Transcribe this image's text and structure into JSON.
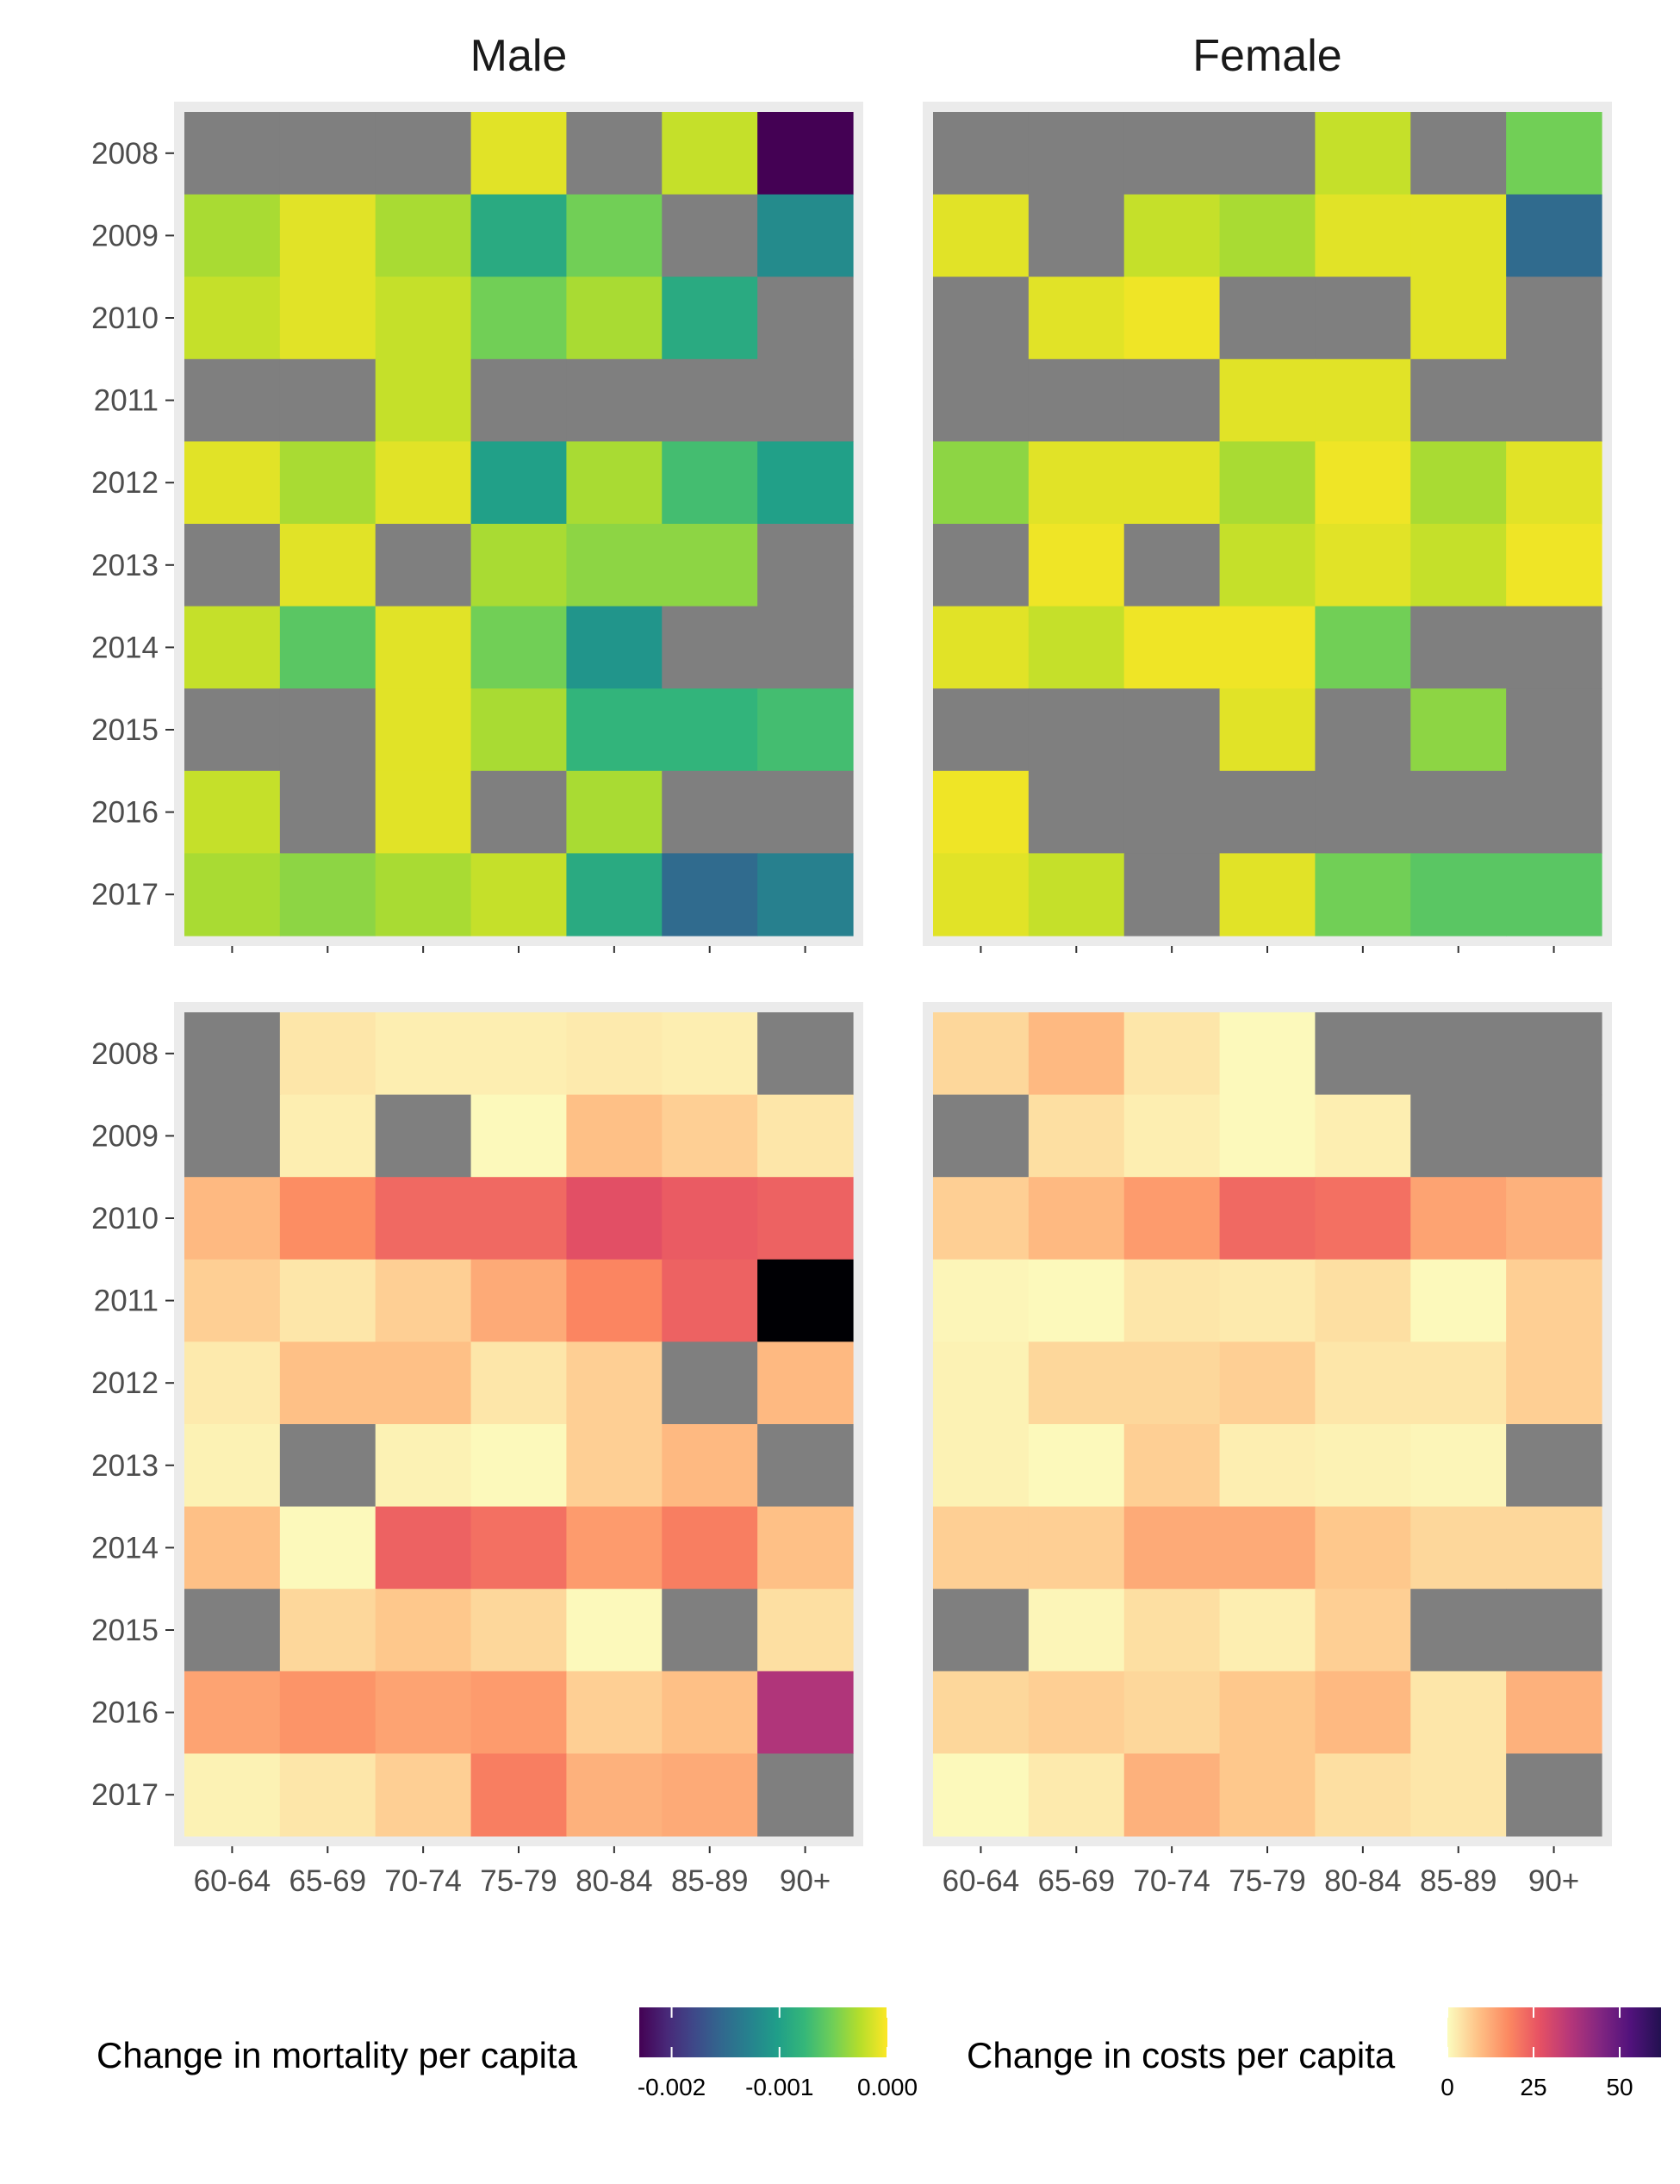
{
  "chart_data": {
    "type": "heatmap",
    "facets": [
      {
        "label": "Male"
      },
      {
        "label": "Female"
      }
    ],
    "x_categories": [
      "60-64",
      "65-69",
      "70-74",
      "75-79",
      "80-84",
      "85-89",
      "90+"
    ],
    "y_categories": [
      "2008",
      "2009",
      "2010",
      "2011",
      "2012",
      "2013",
      "2014",
      "2015",
      "2016",
      "2017"
    ],
    "mortality": {
      "legend_title": "Change in mortality per capita",
      "scale": "viridis",
      "range": [
        -0.0023,
        0.0
      ],
      "ticks": [
        {
          "value": -0.002,
          "label": "-0.002"
        },
        {
          "value": -0.001,
          "label": "-0.001"
        },
        {
          "value": 0.0,
          "label": "0.000"
        }
      ],
      "male": [
        [
          null,
          null,
          null,
          -0.0001,
          null,
          -0.0002,
          -0.0023
        ],
        [
          -0.0003,
          -0.0001,
          -0.0003,
          -0.0009,
          -0.0005,
          null,
          -0.0012
        ],
        [
          -0.0002,
          -0.0001,
          -0.0002,
          -0.0005,
          -0.0003,
          -0.0009,
          null
        ],
        [
          null,
          null,
          -0.0002,
          null,
          null,
          null,
          null
        ],
        [
          -0.0001,
          -0.0003,
          -0.0001,
          -0.001,
          -0.0003,
          -0.0007,
          -0.001
        ],
        [
          null,
          -0.0001,
          null,
          -0.0003,
          -0.0004,
          -0.0004,
          null
        ],
        [
          -0.0002,
          -0.0006,
          -0.0001,
          -0.0005,
          -0.0011,
          null,
          null
        ],
        [
          null,
          null,
          -0.0001,
          -0.0003,
          -0.0008,
          -0.0008,
          -0.0007
        ],
        [
          -0.0002,
          null,
          -0.0001,
          null,
          -0.0003,
          null,
          null
        ],
        [
          -0.0003,
          -0.0004,
          -0.0003,
          -0.0002,
          -0.0009,
          -0.0015,
          -0.0013
        ]
      ],
      "female": [
        [
          null,
          null,
          null,
          null,
          -0.0002,
          null,
          -0.0005
        ],
        [
          -0.0001,
          null,
          -0.0002,
          -0.0003,
          -0.0001,
          -0.0001,
          -0.0015
        ],
        [
          null,
          -0.0001,
          -5e-05,
          null,
          null,
          -0.0001,
          null
        ],
        [
          null,
          null,
          null,
          -0.0001,
          -0.0001,
          null,
          null
        ],
        [
          -0.0004,
          -0.0001,
          -0.0001,
          -0.0003,
          -5e-05,
          -0.0003,
          -0.0001
        ],
        [
          null,
          -5e-05,
          null,
          -0.0002,
          -0.0001,
          -0.0002,
          -5e-05
        ],
        [
          -0.0001,
          -0.0002,
          -5e-05,
          -5e-05,
          -0.0005,
          null,
          null
        ],
        [
          null,
          null,
          null,
          -0.0001,
          null,
          -0.0004,
          null
        ],
        [
          -5e-05,
          null,
          null,
          null,
          null,
          null,
          null
        ],
        [
          -0.0001,
          -0.0002,
          null,
          -0.0001,
          -0.0005,
          -0.0006,
          -0.0006
        ]
      ]
    },
    "costs": {
      "legend_title": "Change in costs per capita",
      "scale": "magma",
      "range": [
        0,
        62
      ],
      "ticks": [
        {
          "value": 0,
          "label": "0"
        },
        {
          "value": 25,
          "label": "25"
        },
        {
          "value": 50,
          "label": "50"
        }
      ],
      "male": [
        [
          null,
          3,
          2,
          2,
          2.5,
          2,
          null
        ],
        [
          null,
          2,
          null,
          0.5,
          8,
          6,
          3
        ],
        [
          9,
          15,
          20,
          20,
          24,
          22,
          21
        ],
        [
          6,
          3,
          6,
          11,
          16,
          21,
          62
        ],
        [
          2.5,
          8,
          8,
          3,
          6,
          null,
          9
        ],
        [
          1.5,
          null,
          1.5,
          0.5,
          6,
          9,
          null
        ],
        [
          8,
          0.5,
          21,
          19,
          13,
          17,
          8
        ],
        [
          null,
          5,
          7,
          5,
          0.5,
          null,
          4
        ],
        [
          12,
          14,
          12,
          13,
          6,
          8,
          32
        ],
        [
          1.5,
          3,
          6,
          17,
          10,
          11,
          null
        ]
      ],
      "female": [
        [
          5,
          9,
          3,
          0.5,
          null,
          null,
          null
        ],
        [
          null,
          4,
          2,
          0.5,
          2,
          null,
          null
        ],
        [
          6,
          9,
          13,
          20,
          19,
          12,
          10
        ],
        [
          1,
          0.5,
          3,
          2.5,
          4,
          0.5,
          6
        ],
        [
          1.5,
          5,
          5,
          6,
          3,
          3,
          6
        ],
        [
          1.5,
          0.5,
          6,
          2,
          1.5,
          1,
          null
        ],
        [
          6,
          6,
          11,
          11,
          7,
          5,
          5
        ],
        [
          null,
          1,
          4,
          2,
          6,
          null,
          null
        ],
        [
          5,
          6,
          5,
          7,
          9,
          3,
          10
        ],
        [
          0.5,
          2.5,
          10,
          7,
          4,
          3,
          null
        ]
      ]
    }
  }
}
